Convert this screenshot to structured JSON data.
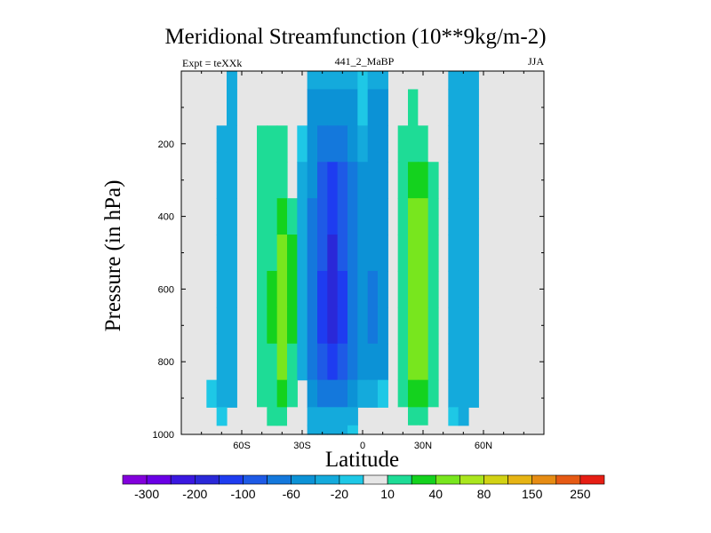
{
  "chart_data": {
    "type": "heatmap",
    "title": "Meridional Streamfunction (10**9kg/m-2)",
    "subtitle_left": "Expt = teXXk",
    "subtitle_center": "441_2_MaBP",
    "subtitle_right": "JJA",
    "xlabel": "Latitude",
    "ylabel": "Pressure (in hPa)",
    "xlim": [
      -90,
      90
    ],
    "ylim": [
      1000,
      0
    ],
    "x_ticks": [
      {
        "value": -60,
        "label": "60S"
      },
      {
        "value": -30,
        "label": "30S"
      },
      {
        "value": 0,
        "label": "0"
      },
      {
        "value": 30,
        "label": "30N"
      },
      {
        "value": 60,
        "label": "60N"
      }
    ],
    "y_ticks": [
      200,
      400,
      600,
      800,
      1000
    ],
    "colorbar": {
      "levels": [
        -300,
        -250,
        -200,
        -150,
        -100,
        -80,
        -60,
        -40,
        -20,
        -10,
        10,
        20,
        40,
        60,
        80,
        100,
        150,
        200,
        250,
        300
      ],
      "labels": [
        "-300",
        "-200",
        "-100",
        "-60",
        "-20",
        "10",
        "40",
        "80",
        "150",
        "250"
      ],
      "colors": [
        "#8200dc",
        "#6a00e6",
        "#3a18e0",
        "#2a28d8",
        "#1e3cf0",
        "#1e5ae6",
        "#1478dc",
        "#0c92d6",
        "#14aadc",
        "#1ec8e6",
        "#e6e6e6",
        "#1edc96",
        "#14d21e",
        "#78e61e",
        "#aae61e",
        "#d2d214",
        "#e6b414",
        "#e68c14",
        "#e65a14",
        "#e61e14"
      ]
    },
    "field": {
      "x": [
        -90,
        -80,
        -75,
        -70,
        -65,
        -60,
        -55,
        -50,
        -45,
        -40,
        -35,
        -30,
        -25,
        -20,
        -15,
        -10,
        -5,
        0,
        5,
        10,
        15,
        20,
        25,
        30,
        35,
        40,
        45,
        50,
        55,
        60,
        65,
        70,
        80,
        90
      ],
      "y": [
        0,
        100,
        200,
        300,
        400,
        500,
        600,
        700,
        800,
        900,
        950,
        1000
      ],
      "values": [
        [
          0,
          0,
          0,
          0,
          -20,
          0,
          0,
          15,
          15,
          0,
          0,
          0,
          -20,
          -20,
          -20,
          -20,
          -20,
          -10,
          -20,
          -20,
          0,
          15,
          15,
          15,
          0,
          0,
          -20,
          -20,
          -20,
          0,
          0,
          0,
          0,
          0
        ],
        [
          0,
          0,
          0,
          0,
          -20,
          0,
          0,
          15,
          15,
          0,
          0,
          0,
          -40,
          -40,
          -40,
          -40,
          -40,
          -10,
          -40,
          -40,
          0,
          15,
          30,
          15,
          0,
          0,
          -20,
          -20,
          -20,
          0,
          0,
          0,
          0,
          0
        ],
        [
          0,
          0,
          0,
          -20,
          -20,
          0,
          0,
          25,
          25,
          25,
          0,
          -10,
          -45,
          -60,
          -70,
          -60,
          -45,
          -30,
          -45,
          -40,
          0,
          25,
          35,
          25,
          15,
          0,
          -20,
          -20,
          -20,
          0,
          0,
          0,
          0,
          0
        ],
        [
          0,
          0,
          0,
          -20,
          -20,
          0,
          0,
          25,
          30,
          30,
          0,
          -20,
          -50,
          -85,
          -110,
          -85,
          -60,
          -40,
          -50,
          -40,
          0,
          25,
          55,
          45,
          25,
          0,
          -20,
          -20,
          -20,
          0,
          0,
          0,
          0,
          0
        ],
        [
          0,
          0,
          0,
          -20,
          -20,
          0,
          0,
          25,
          35,
          55,
          35,
          -20,
          -60,
          -90,
          -120,
          -90,
          -70,
          -50,
          -55,
          -40,
          0,
          30,
          70,
          60,
          30,
          0,
          -20,
          -20,
          -20,
          0,
          0,
          0,
          0,
          0
        ],
        [
          0,
          0,
          0,
          -20,
          -20,
          0,
          0,
          25,
          35,
          70,
          45,
          -25,
          -60,
          -90,
          -150,
          -90,
          -70,
          -50,
          -55,
          -40,
          0,
          30,
          70,
          65,
          30,
          0,
          -20,
          -20,
          -20,
          0,
          0,
          0,
          0,
          0
        ],
        [
          0,
          0,
          0,
          -20,
          -20,
          0,
          0,
          25,
          40,
          70,
          45,
          -25,
          -60,
          -100,
          -150,
          -100,
          -70,
          -50,
          -60,
          -40,
          0,
          30,
          70,
          65,
          30,
          0,
          -20,
          -20,
          -20,
          0,
          0,
          0,
          0,
          0
        ],
        [
          0,
          0,
          0,
          -20,
          -20,
          0,
          0,
          25,
          40,
          70,
          40,
          -25,
          -60,
          -100,
          -150,
          -100,
          -70,
          -50,
          -60,
          -40,
          0,
          30,
          70,
          65,
          30,
          0,
          -20,
          -20,
          -20,
          0,
          0,
          0,
          0,
          0
        ],
        [
          0,
          0,
          0,
          -20,
          -20,
          0,
          0,
          25,
          35,
          60,
          35,
          -20,
          -60,
          -90,
          -110,
          -90,
          -60,
          -50,
          -50,
          -40,
          0,
          30,
          70,
          60,
          30,
          0,
          -20,
          -30,
          -20,
          0,
          0,
          0,
          0,
          0
        ],
        [
          0,
          0,
          -15,
          -20,
          -20,
          0,
          0,
          20,
          30,
          40,
          25,
          0,
          -40,
          -60,
          -70,
          -60,
          -40,
          -20,
          -20,
          -10,
          0,
          25,
          40,
          40,
          25,
          0,
          -20,
          -30,
          -20,
          0,
          0,
          0,
          0,
          0
        ],
        [
          0,
          0,
          0,
          -15,
          0,
          0,
          0,
          15,
          20,
          20,
          15,
          0,
          -20,
          -30,
          -30,
          -30,
          -20,
          0,
          0,
          0,
          0,
          15,
          20,
          20,
          15,
          0,
          -15,
          -20,
          0,
          0,
          0,
          0,
          0,
          0
        ],
        [
          0,
          0,
          0,
          0,
          0,
          0,
          0,
          0,
          0,
          0,
          0,
          0,
          -20,
          -20,
          -20,
          -20,
          -15,
          0,
          0,
          0,
          0,
          0,
          15,
          15,
          0,
          0,
          0,
          0,
          0,
          0,
          0,
          0,
          0,
          0
        ]
      ]
    }
  }
}
